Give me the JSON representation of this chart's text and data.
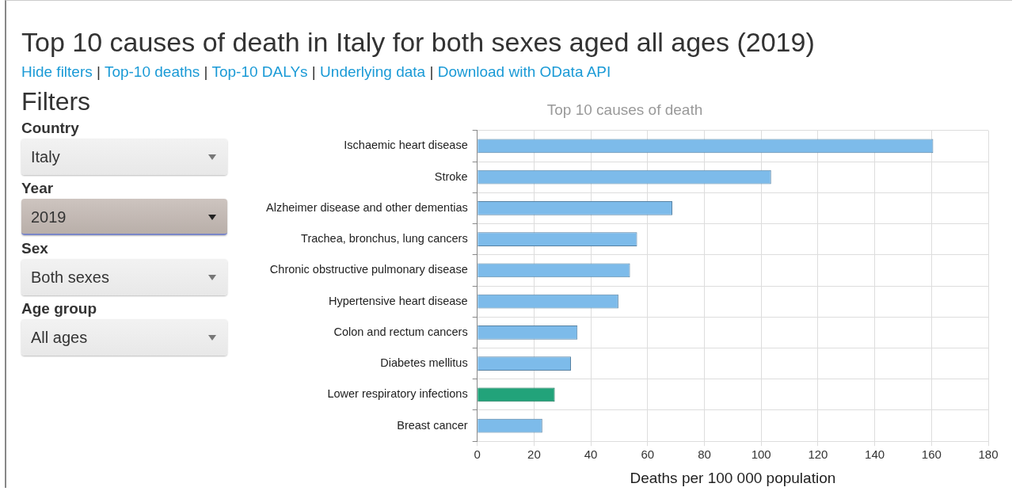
{
  "chart_data": {
    "type": "bar",
    "orientation": "horizontal",
    "title": "Top 10 causes of death in Italy for both sexes aged all ages (2019)",
    "subtitle": "Top 10 causes of death",
    "xlabel": "Deaths per 100 000 population",
    "categories": [
      "Ischaemic heart disease",
      "Stroke",
      "Alzheimer disease and other dementias",
      "Trachea, bronchus, lung cancers",
      "Chronic obstructive pulmonary disease",
      "Hypertensive heart disease",
      "Colon and rectum cancers",
      "Diabetes mellitus",
      "Lower respiratory infections",
      "Breast cancer"
    ],
    "values": [
      160.6,
      103.5,
      68.7,
      56.3,
      53.8,
      49.7,
      35.3,
      33.0,
      27.3,
      22.9
    ],
    "colors": [
      "#7dbbea",
      "#7dbbea",
      "#7dbbea",
      "#7dbbea",
      "#7dbbea",
      "#7dbbea",
      "#7dbbea",
      "#7dbbea",
      "#22a37a",
      "#7dbbea"
    ],
    "xlim": [
      0,
      180
    ],
    "xticks": [
      0,
      20,
      40,
      60,
      80,
      100,
      120,
      140,
      160,
      180
    ],
    "grid": true,
    "legend": false,
    "annotations": [
      "Hide filters | Top-10 deaths | Top-10 DALYs | Underlying data | Download with OData API",
      "Filters",
      "Country",
      "Italy",
      "Year",
      "2019",
      "Sex",
      "Both sexes",
      "Age group",
      "All ages"
    ]
  }
}
